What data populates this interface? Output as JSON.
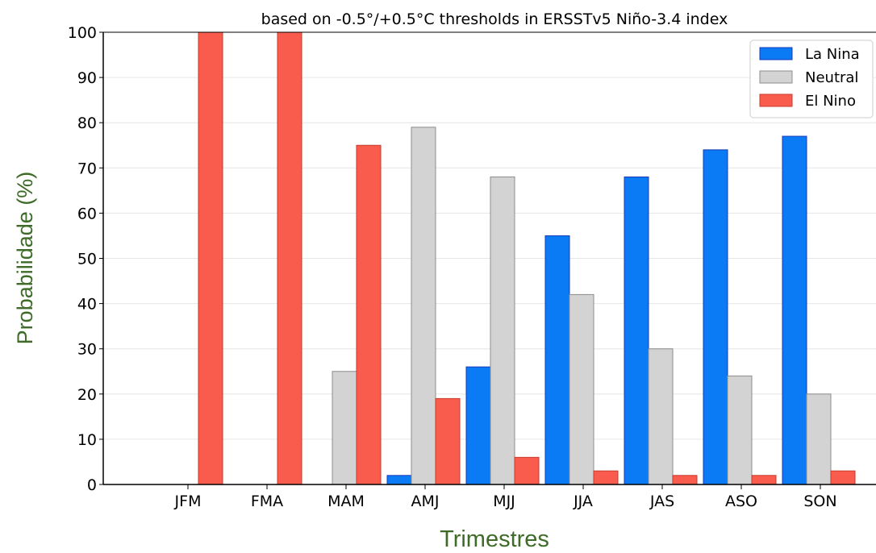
{
  "chart_data": {
    "type": "bar",
    "title": "based on -0.5°/+0.5°C thresholds in ERSSTv5 Niño-3.4 index",
    "xlabel": "Trimestres",
    "ylabel": "Probabilidade (%)",
    "ylim": [
      0,
      100
    ],
    "yticks": [
      "0",
      "10",
      "20",
      "30",
      "40",
      "50",
      "60",
      "70",
      "80",
      "90",
      "100"
    ],
    "grid": true,
    "legend_position": "top-right",
    "categories": [
      "JFM",
      "FMA",
      "MAM",
      "AMJ",
      "MJJ",
      "JJA",
      "JAS",
      "ASO",
      "SON"
    ],
    "series": [
      {
        "name": "La Nina",
        "color": "#0a7af5",
        "values": [
          0,
          0,
          0,
          2,
          26,
          55,
          68,
          74,
          77
        ]
      },
      {
        "name": "Neutral",
        "color": "#d3d3d3",
        "values": [
          0,
          0,
          25,
          79,
          68,
          42,
          30,
          24,
          20
        ]
      },
      {
        "name": "El Nino",
        "color": "#f95c4d",
        "values": [
          100,
          100,
          75,
          19,
          6,
          3,
          2,
          2,
          3
        ]
      }
    ],
    "colors": {
      "axis_label": "#3e6b27",
      "grid": "#e6e6e6",
      "axis": "#000000"
    }
  }
}
